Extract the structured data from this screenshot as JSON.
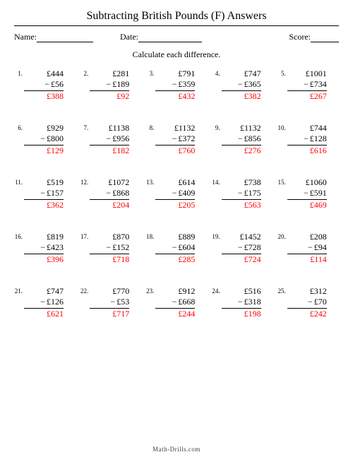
{
  "title": "Subtracting British Pounds (F) Answers",
  "labels": {
    "name": "Name:",
    "date": "Date:",
    "score": "Score:"
  },
  "instruction": "Calculate each difference.",
  "currency": "£",
  "colors": {
    "answer": "#ff0000",
    "text": "#000000",
    "background": "#ffffff"
  },
  "line_widths": {
    "name": 80,
    "date": 90,
    "score": 40
  },
  "problems": [
    {
      "n": "1.",
      "a": "£444",
      "b": "£56",
      "ans": "£388"
    },
    {
      "n": "2.",
      "a": "£281",
      "b": "£189",
      "ans": "£92"
    },
    {
      "n": "3.",
      "a": "£791",
      "b": "£359",
      "ans": "£432"
    },
    {
      "n": "4.",
      "a": "£747",
      "b": "£365",
      "ans": "£382"
    },
    {
      "n": "5.",
      "a": "£1001",
      "b": "£734",
      "ans": "£267"
    },
    {
      "n": "6.",
      "a": "£929",
      "b": "£800",
      "ans": "£129"
    },
    {
      "n": "7.",
      "a": "£1138",
      "b": "£956",
      "ans": "£182"
    },
    {
      "n": "8.",
      "a": "£1132",
      "b": "£372",
      "ans": "£760"
    },
    {
      "n": "9.",
      "a": "£1132",
      "b": "£856",
      "ans": "£276"
    },
    {
      "n": "10.",
      "a": "£744",
      "b": "£128",
      "ans": "£616"
    },
    {
      "n": "11.",
      "a": "£519",
      "b": "£157",
      "ans": "£362"
    },
    {
      "n": "12.",
      "a": "£1072",
      "b": "£868",
      "ans": "£204"
    },
    {
      "n": "13.",
      "a": "£614",
      "b": "£409",
      "ans": "£205"
    },
    {
      "n": "14.",
      "a": "£738",
      "b": "£175",
      "ans": "£563"
    },
    {
      "n": "15.",
      "a": "£1060",
      "b": "£591",
      "ans": "£469"
    },
    {
      "n": "16.",
      "a": "£819",
      "b": "£423",
      "ans": "£396"
    },
    {
      "n": "17.",
      "a": "£870",
      "b": "£152",
      "ans": "£718"
    },
    {
      "n": "18.",
      "a": "£889",
      "b": "£604",
      "ans": "£285"
    },
    {
      "n": "19.",
      "a": "£1452",
      "b": "£728",
      "ans": "£724"
    },
    {
      "n": "20.",
      "a": "£208",
      "b": "£94",
      "ans": "£114"
    },
    {
      "n": "21.",
      "a": "£747",
      "b": "£126",
      "ans": "£621"
    },
    {
      "n": "22.",
      "a": "£770",
      "b": "£53",
      "ans": "£717"
    },
    {
      "n": "23.",
      "a": "£912",
      "b": "£668",
      "ans": "£244"
    },
    {
      "n": "24.",
      "a": "£516",
      "b": "£318",
      "ans": "£198"
    },
    {
      "n": "25.",
      "a": "£312",
      "b": "£70",
      "ans": "£242"
    }
  ],
  "footer": "Math-Drills.com"
}
